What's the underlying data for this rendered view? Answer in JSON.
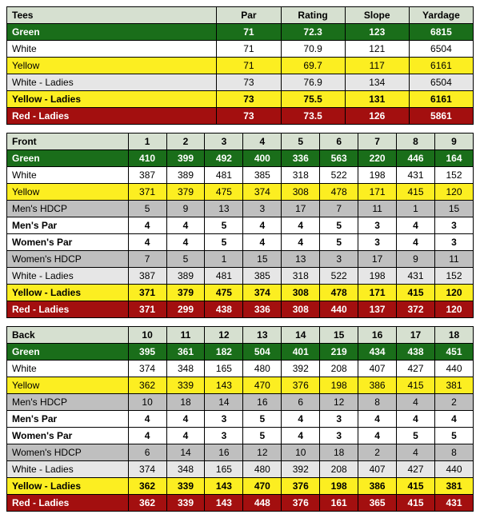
{
  "summary": {
    "headers": [
      "Tees",
      "Par",
      "Rating",
      "Slope",
      "Yardage"
    ],
    "rows": [
      {
        "cls": "tee-green",
        "cells": [
          "Green",
          "71",
          "72.3",
          "123",
          "6815"
        ]
      },
      {
        "cls": "tee-white",
        "cells": [
          "White",
          "71",
          "70.9",
          "121",
          "6504"
        ]
      },
      {
        "cls": "tee-yellow",
        "cells": [
          "Yellow",
          "71",
          "69.7",
          "117",
          "6161"
        ]
      },
      {
        "cls": "tee-wladies",
        "cells": [
          "White - Ladies",
          "73",
          "76.9",
          "134",
          "6504"
        ]
      },
      {
        "cls": "tee-yladies",
        "cells": [
          "Yellow - Ladies",
          "73",
          "75.5",
          "131",
          "6161"
        ]
      },
      {
        "cls": "tee-red",
        "cells": [
          "Red - Ladies",
          "73",
          "73.5",
          "126",
          "5861"
        ]
      }
    ]
  },
  "front": {
    "header_label": "Front",
    "hole_numbers": [
      "1",
      "2",
      "3",
      "4",
      "5",
      "6",
      "7",
      "8",
      "9"
    ],
    "rows": [
      {
        "cls": "tee-green",
        "label": "Green",
        "vals": [
          "410",
          "399",
          "492",
          "400",
          "336",
          "563",
          "220",
          "446",
          "164"
        ]
      },
      {
        "cls": "tee-white",
        "label": "White",
        "vals": [
          "387",
          "389",
          "481",
          "385",
          "318",
          "522",
          "198",
          "431",
          "152"
        ]
      },
      {
        "cls": "tee-yellow",
        "label": "Yellow",
        "vals": [
          "371",
          "379",
          "475",
          "374",
          "308",
          "478",
          "171",
          "415",
          "120"
        ]
      },
      {
        "cls": "hdcp",
        "label": "Men's HDCP",
        "vals": [
          "5",
          "9",
          "13",
          "3",
          "17",
          "7",
          "11",
          "1",
          "15"
        ]
      },
      {
        "cls": "par-row",
        "label": "Men's Par",
        "vals": [
          "4",
          "4",
          "5",
          "4",
          "4",
          "5",
          "3",
          "4",
          "3"
        ]
      },
      {
        "cls": "par-row",
        "label": "Women's Par",
        "vals": [
          "4",
          "4",
          "5",
          "4",
          "4",
          "5",
          "3",
          "4",
          "3"
        ]
      },
      {
        "cls": "hdcp",
        "label": "Women's HDCP",
        "vals": [
          "7",
          "5",
          "1",
          "15",
          "13",
          "3",
          "17",
          "9",
          "11"
        ]
      },
      {
        "cls": "tee-wladies",
        "label": "White - Ladies",
        "vals": [
          "387",
          "389",
          "481",
          "385",
          "318",
          "522",
          "198",
          "431",
          "152"
        ]
      },
      {
        "cls": "tee-yladies",
        "label": "Yellow - Ladies",
        "vals": [
          "371",
          "379",
          "475",
          "374",
          "308",
          "478",
          "171",
          "415",
          "120"
        ]
      },
      {
        "cls": "tee-red",
        "label": "Red - Ladies",
        "vals": [
          "371",
          "299",
          "438",
          "336",
          "308",
          "440",
          "137",
          "372",
          "120"
        ]
      }
    ]
  },
  "back": {
    "header_label": "Back",
    "hole_numbers": [
      "10",
      "11",
      "12",
      "13",
      "14",
      "15",
      "16",
      "17",
      "18"
    ],
    "rows": [
      {
        "cls": "tee-green",
        "label": "Green",
        "vals": [
          "395",
          "361",
          "182",
          "504",
          "401",
          "219",
          "434",
          "438",
          "451"
        ]
      },
      {
        "cls": "tee-white",
        "label": "White",
        "vals": [
          "374",
          "348",
          "165",
          "480",
          "392",
          "208",
          "407",
          "427",
          "440"
        ]
      },
      {
        "cls": "tee-yellow",
        "label": "Yellow",
        "vals": [
          "362",
          "339",
          "143",
          "470",
          "376",
          "198",
          "386",
          "415",
          "381"
        ]
      },
      {
        "cls": "hdcp",
        "label": "Men's HDCP",
        "vals": [
          "10",
          "18",
          "14",
          "16",
          "6",
          "12",
          "8",
          "4",
          "2"
        ]
      },
      {
        "cls": "par-row",
        "label": "Men's Par",
        "vals": [
          "4",
          "4",
          "3",
          "5",
          "4",
          "3",
          "4",
          "4",
          "4"
        ]
      },
      {
        "cls": "par-row",
        "label": "Women's Par",
        "vals": [
          "4",
          "4",
          "3",
          "5",
          "4",
          "3",
          "4",
          "5",
          "5"
        ]
      },
      {
        "cls": "hdcp",
        "label": "Women's HDCP",
        "vals": [
          "6",
          "14",
          "16",
          "12",
          "10",
          "18",
          "2",
          "4",
          "8"
        ]
      },
      {
        "cls": "tee-wladies",
        "label": "White - Ladies",
        "vals": [
          "374",
          "348",
          "165",
          "480",
          "392",
          "208",
          "407",
          "427",
          "440"
        ]
      },
      {
        "cls": "tee-yladies",
        "label": "Yellow - Ladies",
        "vals": [
          "362",
          "339",
          "143",
          "470",
          "376",
          "198",
          "386",
          "415",
          "381"
        ]
      },
      {
        "cls": "tee-red",
        "label": "Red - Ladies",
        "vals": [
          "362",
          "339",
          "143",
          "448",
          "376",
          "161",
          "365",
          "415",
          "431"
        ]
      }
    ]
  }
}
